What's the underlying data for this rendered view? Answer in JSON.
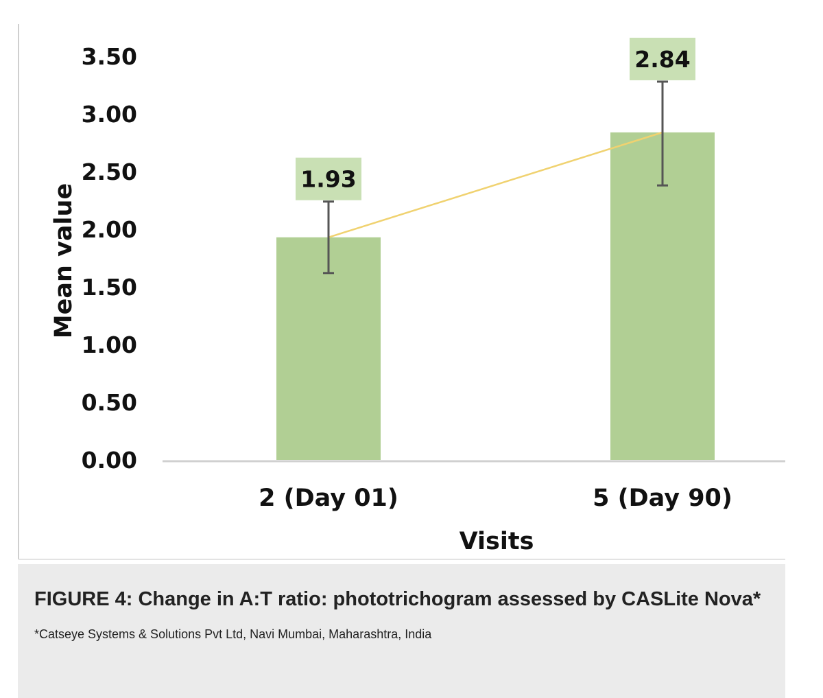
{
  "chart_data": {
    "type": "bar",
    "categories": [
      "2 (Day 01)",
      "5 (Day 90)"
    ],
    "values": [
      1.93,
      2.84
    ],
    "error_bars": [
      {
        "low": 1.62,
        "high": 2.24
      },
      {
        "low": 2.38,
        "high": 3.28
      }
    ],
    "data_labels": [
      "1.93",
      "2.84"
    ],
    "y_ticks": [
      "0.00",
      "0.50",
      "1.00",
      "1.50",
      "2.00",
      "2.50",
      "3.00",
      "3.50"
    ],
    "ylim": [
      0,
      3.5
    ],
    "xlabel": "Visits",
    "ylabel": "Mean value",
    "trend_line": true,
    "grid": false,
    "colors": {
      "bar": "#b1cf94",
      "label_box": "#c9e0b4",
      "trend_line": "#f0d270",
      "error_bar": "#555555",
      "axis": "#d0d0d0"
    }
  },
  "caption": {
    "title": "FIGURE 4: Change in A:T ratio: phototrichogram assessed by CASLite Nova*",
    "note": "*Catseye Systems & Solutions Pvt Ltd, Navi Mumbai, Maharashtra, India"
  }
}
